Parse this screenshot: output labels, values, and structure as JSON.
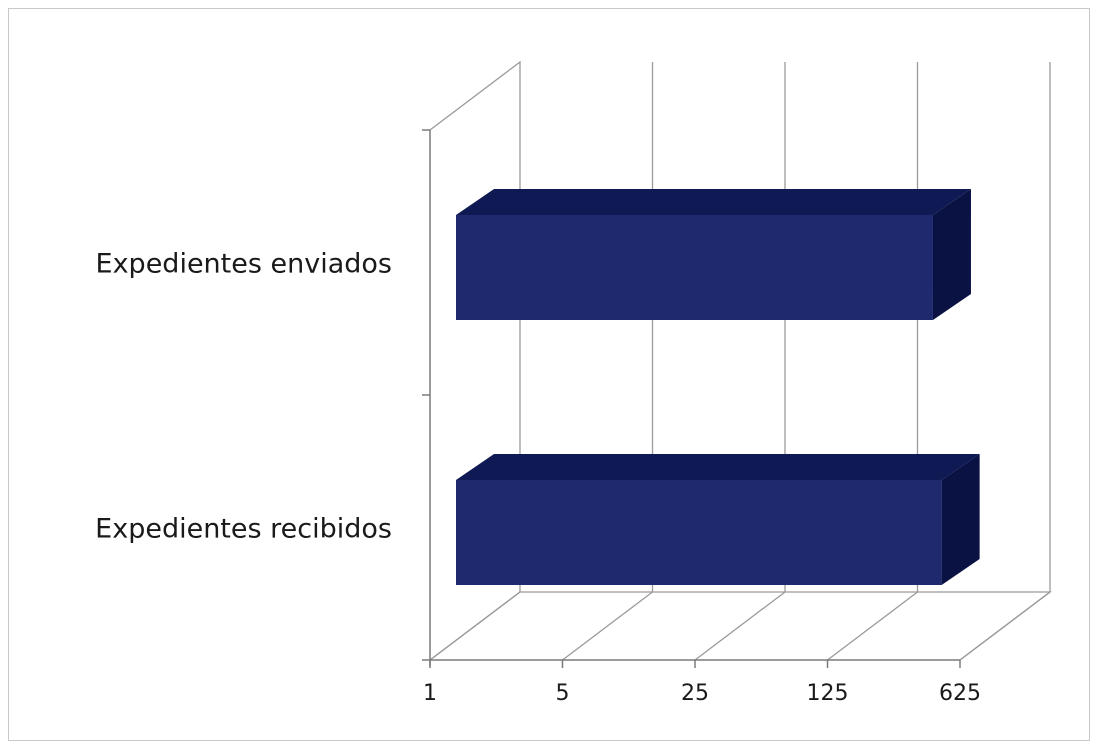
{
  "chart_data": {
    "type": "bar",
    "orientation": "horizontal",
    "style": "3d",
    "categories": [
      "Expedientes enviados",
      "Expedientes recibidos"
    ],
    "values": [
      450,
      500
    ],
    "x_scale": "log",
    "x_log_base": 5,
    "xlim": [
      1,
      625
    ],
    "x_ticks": [
      "1",
      "5",
      "25",
      "125",
      "625"
    ],
    "title": "",
    "xlabel": "",
    "ylabel": "",
    "grid": true,
    "legend": "none",
    "colors": {
      "bar_front": "#1f2a6e",
      "bar_top": "#0f1a55",
      "bar_side": "#0a1244",
      "grid": "#9a9a9a",
      "axis": "#7a7a7a"
    }
  }
}
